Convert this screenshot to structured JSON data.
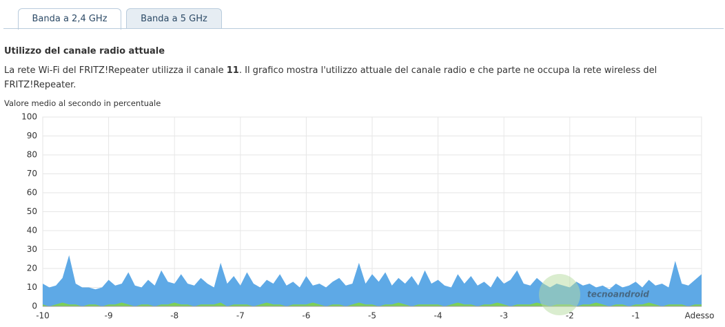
{
  "tabs": [
    "Banda a 2,4 GHz",
    "Banda a 5 GHz"
  ],
  "heading": "Utilizzo del canale radio attuale",
  "intro": {
    "before": "La rete Wi-Fi del FRITZ!Repeater utilizza il canale ",
    "channel": "11",
    "after": ". Il grafico mostra l'utilizzo attuale del canale radio e che parte ne occupa la rete wireless del FRITZ!Repeater."
  },
  "watermark": "tecnoandroid",
  "chart_data": {
    "type": "area",
    "y_label": "Valore medio al secondo in percentuale",
    "x": [
      -10,
      -9.9,
      -9.8,
      -9.7,
      -9.6,
      -9.5,
      -9.4,
      -9.3,
      -9.2,
      -9.1,
      -9,
      -8.9,
      -8.8,
      -8.7,
      -8.6,
      -8.5,
      -8.4,
      -8.3,
      -8.2,
      -8.1,
      -8,
      -7.9,
      -7.8,
      -7.7,
      -7.6,
      -7.5,
      -7.4,
      -7.3,
      -7.2,
      -7.1,
      -7,
      -6.9,
      -6.8,
      -6.7,
      -6.6,
      -6.5,
      -6.4,
      -6.3,
      -6.2,
      -6.1,
      -6,
      -5.9,
      -5.8,
      -5.7,
      -5.6,
      -5.5,
      -5.4,
      -5.3,
      -5.2,
      -5.1,
      -5,
      -4.9,
      -4.8,
      -4.7,
      -4.6,
      -4.5,
      -4.4,
      -4.3,
      -4.2,
      -4.1,
      -4,
      -3.9,
      -3.8,
      -3.7,
      -3.6,
      -3.5,
      -3.4,
      -3.3,
      -3.2,
      -3.1,
      -3,
      -2.9,
      -2.8,
      -2.7,
      -2.6,
      -2.5,
      -2.4,
      -2.3,
      -2.2,
      -2.1,
      -2,
      -1.9,
      -1.8,
      -1.7,
      -1.6,
      -1.5,
      -1.4,
      -1.3,
      -1.2,
      -1.1,
      -1,
      -0.9,
      -0.8,
      -0.7,
      -0.6,
      -0.5,
      -0.4,
      -0.3,
      -0.2,
      -0.1,
      0
    ],
    "series": [
      {
        "color": "#5ea9e6",
        "values": [
          12,
          10,
          11,
          15,
          27,
          12,
          10,
          10,
          9,
          10,
          14,
          11,
          12,
          18,
          11,
          10,
          14,
          11,
          19,
          13,
          12,
          17,
          12,
          11,
          15,
          12,
          10,
          23,
          12,
          16,
          11,
          18,
          12,
          10,
          14,
          12,
          17,
          11,
          13,
          10,
          16,
          11,
          12,
          10,
          13,
          15,
          11,
          12,
          23,
          12,
          17,
          13,
          18,
          11,
          15,
          12,
          16,
          11,
          19,
          12,
          14,
          11,
          10,
          17,
          12,
          16,
          11,
          13,
          10,
          16,
          12,
          14,
          19,
          12,
          11,
          15,
          12,
          10,
          12,
          11,
          10,
          13,
          11,
          12,
          10,
          11,
          9,
          12,
          10,
          11,
          13,
          10,
          14,
          11,
          12,
          10,
          24,
          12,
          11,
          14,
          17
        ]
      },
      {
        "color": "#7dcf58",
        "values": [
          1,
          0,
          1,
          2,
          1,
          1,
          0,
          1,
          1,
          0,
          1,
          1,
          2,
          1,
          0,
          1,
          1,
          0,
          1,
          1,
          2,
          1,
          1,
          0,
          1,
          1,
          1,
          2,
          0,
          1,
          1,
          1,
          0,
          1,
          2,
          1,
          1,
          0,
          1,
          1,
          1,
          2,
          1,
          0,
          1,
          1,
          0,
          1,
          2,
          1,
          1,
          0,
          1,
          1,
          2,
          1,
          0,
          1,
          1,
          1,
          1,
          0,
          1,
          2,
          1,
          1,
          0,
          1,
          1,
          2,
          1,
          0,
          1,
          1,
          1,
          2,
          1,
          0,
          1,
          1,
          1,
          0,
          1,
          1,
          2,
          1,
          0,
          1,
          1,
          0,
          1,
          1,
          2,
          1,
          0,
          1,
          1,
          1,
          0,
          1,
          1
        ]
      }
    ],
    "xlim": [
      -10,
      0
    ],
    "xticks": [
      -10,
      -9,
      -8,
      -7,
      -6,
      -5,
      -4,
      -3,
      -2,
      -1,
      {
        "value": 0,
        "label": "Adesso"
      }
    ],
    "ylim": [
      0,
      100
    ],
    "yticks": [
      0,
      10,
      20,
      30,
      40,
      50,
      60,
      70,
      80,
      90,
      100
    ],
    "grid": true
  }
}
